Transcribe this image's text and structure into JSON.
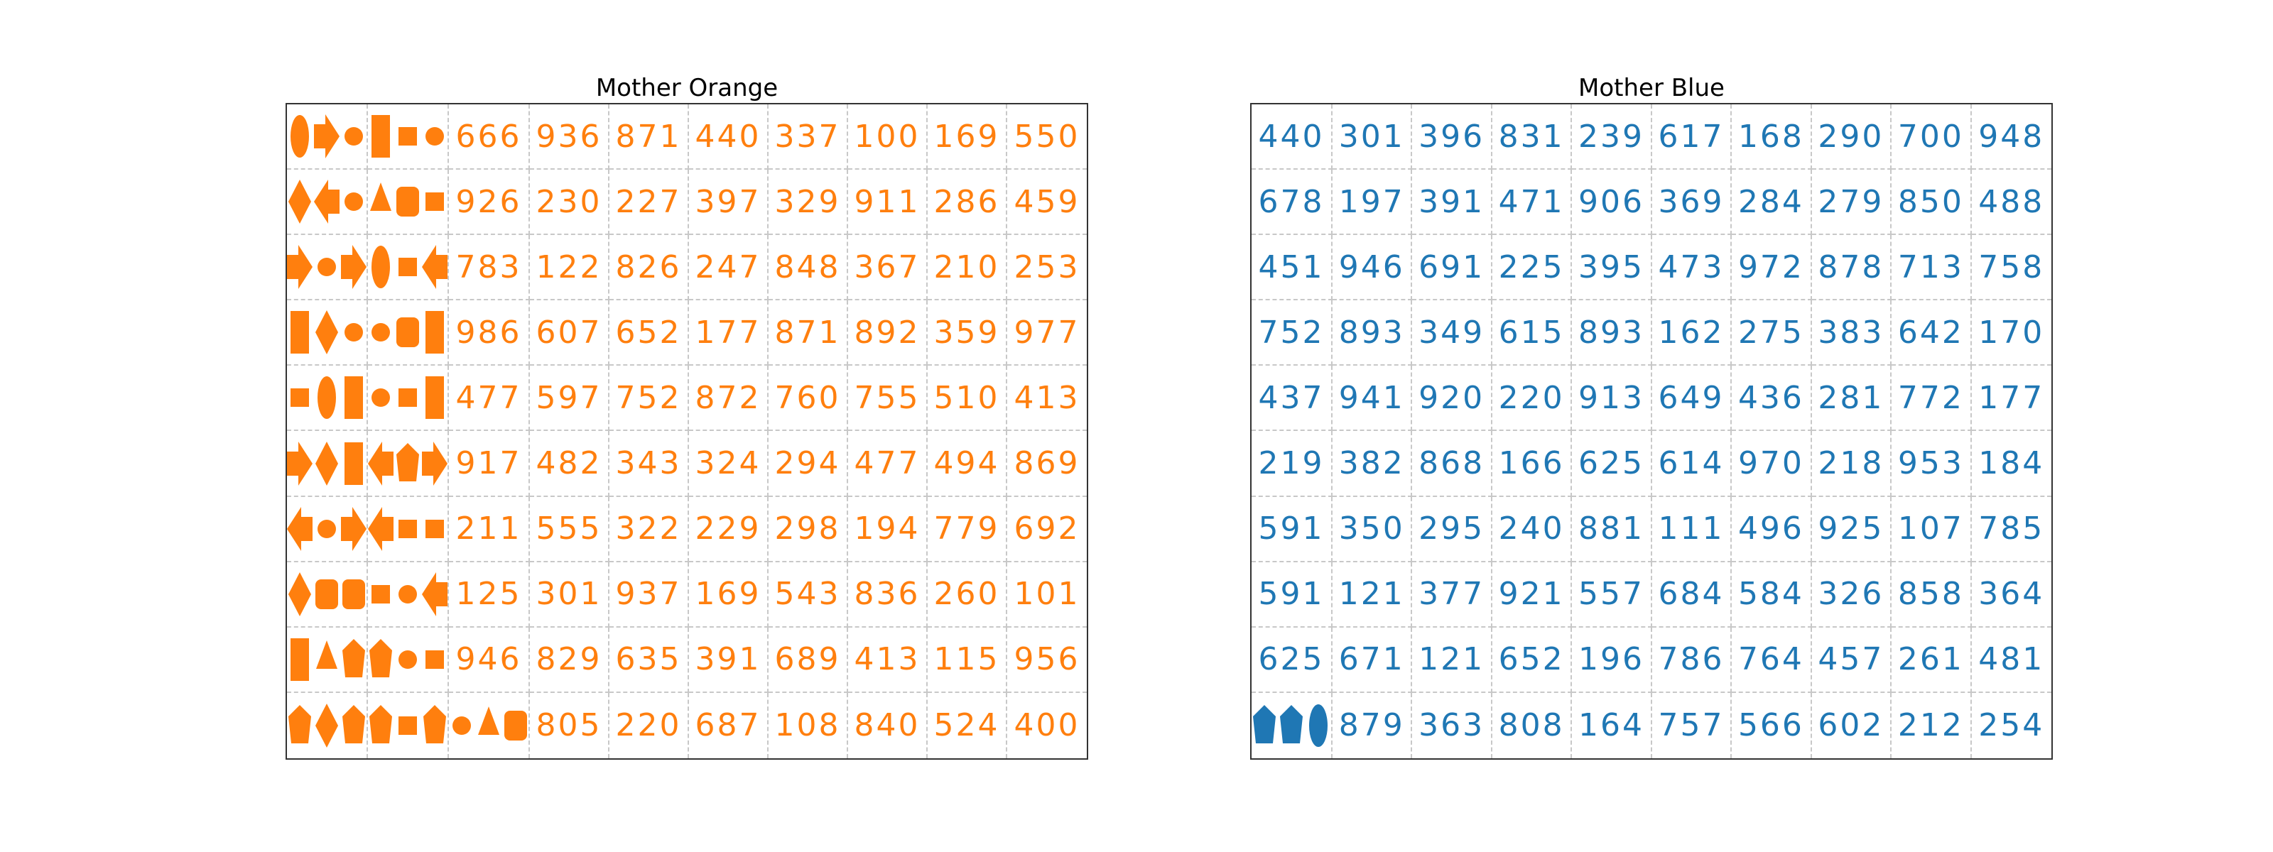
{
  "colors": {
    "orange": "#ff7f0e",
    "blue": "#1f77b4",
    "border": "#333333",
    "grid": "#c8c8c8"
  },
  "panels": [
    {
      "title": "Mother Orange",
      "color": "#ff7f0e",
      "rows": [
        [
          {
            "shapes": [
              "ellipse",
              "arrow",
              "circle"
            ]
          },
          {
            "shapes": [
              "rect",
              "square",
              "circle"
            ]
          },
          "666",
          "936",
          "871",
          "440",
          "337",
          "100",
          "169",
          "550"
        ],
        [
          {
            "shapes": [
              "diamond",
              "arrow-left",
              "circle"
            ]
          },
          {
            "shapes": [
              "triangle",
              "rounded",
              "square"
            ]
          },
          "926",
          "230",
          "227",
          "397",
          "329",
          "911",
          "286",
          "459"
        ],
        [
          {
            "shapes": [
              "arrow",
              "circle",
              "arrow"
            ]
          },
          {
            "shapes": [
              "ellipse",
              "square",
              "arrow-left"
            ]
          },
          "783",
          "122",
          "826",
          "247",
          "848",
          "367",
          "210",
          "253"
        ],
        [
          {
            "shapes": [
              "rect",
              "diamond",
              "circle"
            ]
          },
          {
            "shapes": [
              "circle",
              "rounded",
              "rect"
            ]
          },
          "986",
          "607",
          "652",
          "177",
          "871",
          "892",
          "359",
          "977"
        ],
        [
          {
            "shapes": [
              "square",
              "ellipse",
              "rect"
            ]
          },
          {
            "shapes": [
              "circle",
              "square",
              "rect"
            ]
          },
          "477",
          "597",
          "752",
          "872",
          "760",
          "755",
          "510",
          "413"
        ],
        [
          {
            "shapes": [
              "arrow",
              "diamond",
              "rect"
            ]
          },
          {
            "shapes": [
              "arrow-left",
              "pentagon",
              "arrow"
            ]
          },
          "917",
          "482",
          "343",
          "324",
          "294",
          "477",
          "494",
          "869"
        ],
        [
          {
            "shapes": [
              "arrow-left",
              "circle",
              "arrow"
            ]
          },
          {
            "shapes": [
              "arrow-left",
              "square",
              "square"
            ]
          },
          "211",
          "555",
          "322",
          "229",
          "298",
          "194",
          "779",
          "692"
        ],
        [
          {
            "shapes": [
              "diamond",
              "rounded",
              "rounded"
            ]
          },
          {
            "shapes": [
              "square",
              "circle",
              "arrow-left"
            ]
          },
          "125",
          "301",
          "937",
          "169",
          "543",
          "836",
          "260",
          "101"
        ],
        [
          {
            "shapes": [
              "rect",
              "triangle",
              "pentagon"
            ]
          },
          {
            "shapes": [
              "pentagon",
              "circle",
              "square"
            ]
          },
          "946",
          "829",
          "635",
          "391",
          "689",
          "413",
          "115",
          "956"
        ],
        [
          {
            "shapes": [
              "pentagon",
              "diamond",
              "pentagon"
            ]
          },
          {
            "shapes": [
              "pentagon",
              "square",
              "pentagon"
            ]
          },
          {
            "shapes": [
              "circle",
              "triangle",
              "rounded"
            ]
          },
          "805",
          "220",
          "687",
          "108",
          "840",
          "524",
          "400"
        ]
      ]
    },
    {
      "title": "Mother Blue",
      "color": "#1f77b4",
      "rows": [
        [
          "440",
          "301",
          "396",
          "831",
          "239",
          "617",
          "168",
          "290",
          "700",
          "948"
        ],
        [
          "678",
          "197",
          "391",
          "471",
          "906",
          "369",
          "284",
          "279",
          "850",
          "488"
        ],
        [
          "451",
          "946",
          "691",
          "225",
          "395",
          "473",
          "972",
          "878",
          "713",
          "758"
        ],
        [
          "752",
          "893",
          "349",
          "615",
          "893",
          "162",
          "275",
          "383",
          "642",
          "170"
        ],
        [
          "437",
          "941",
          "920",
          "220",
          "913",
          "649",
          "436",
          "281",
          "772",
          "177"
        ],
        [
          "219",
          "382",
          "868",
          "166",
          "625",
          "614",
          "970",
          "218",
          "953",
          "184"
        ],
        [
          "591",
          "350",
          "295",
          "240",
          "881",
          "111",
          "496",
          "925",
          "107",
          "785"
        ],
        [
          "591",
          "121",
          "377",
          "921",
          "557",
          "684",
          "584",
          "326",
          "858",
          "364"
        ],
        [
          "625",
          "671",
          "121",
          "652",
          "196",
          "786",
          "764",
          "457",
          "261",
          "481"
        ],
        [
          {
            "shapes": [
              "pentagon",
              "pentagon",
              "ellipse"
            ]
          },
          "879",
          "363",
          "808",
          "164",
          "757",
          "566",
          "602",
          "212",
          "254"
        ]
      ]
    }
  ]
}
